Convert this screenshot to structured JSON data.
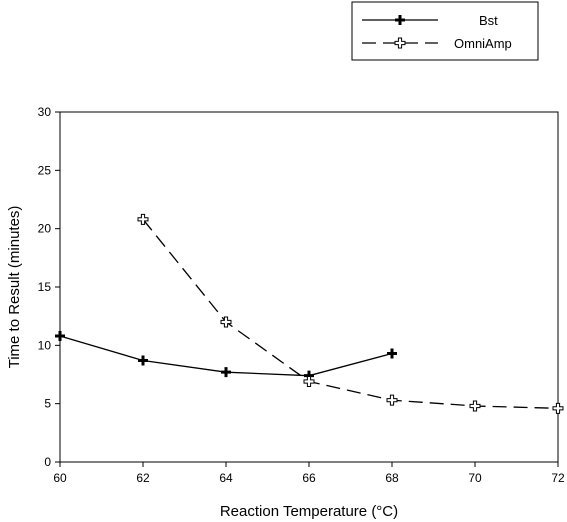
{
  "chart_data": {
    "type": "line",
    "title": "",
    "xlabel": "Reaction Temperature (°C)",
    "ylabel": "Time to Result (minutes)",
    "xlim": [
      60,
      72
    ],
    "ylim": [
      0,
      30
    ],
    "xticks": [
      60,
      62,
      64,
      66,
      68,
      70,
      72
    ],
    "yticks": [
      0,
      5,
      10,
      15,
      20,
      25,
      30
    ],
    "grid": false,
    "legend_position": "top-right, outside plot area",
    "series": [
      {
        "name": "Bst",
        "style": "solid",
        "marker": "filled-cross",
        "color": "#000000",
        "x": [
          60,
          62,
          64,
          66,
          68
        ],
        "y": [
          10.8,
          8.7,
          7.7,
          7.4,
          9.3
        ]
      },
      {
        "name": "OmniAmp",
        "style": "dashed",
        "marker": "hollow-cross",
        "color": "#000000",
        "x": [
          62,
          64,
          66,
          68,
          70,
          72
        ],
        "y": [
          20.8,
          12.0,
          6.9,
          5.3,
          4.8,
          4.6
        ]
      }
    ]
  }
}
